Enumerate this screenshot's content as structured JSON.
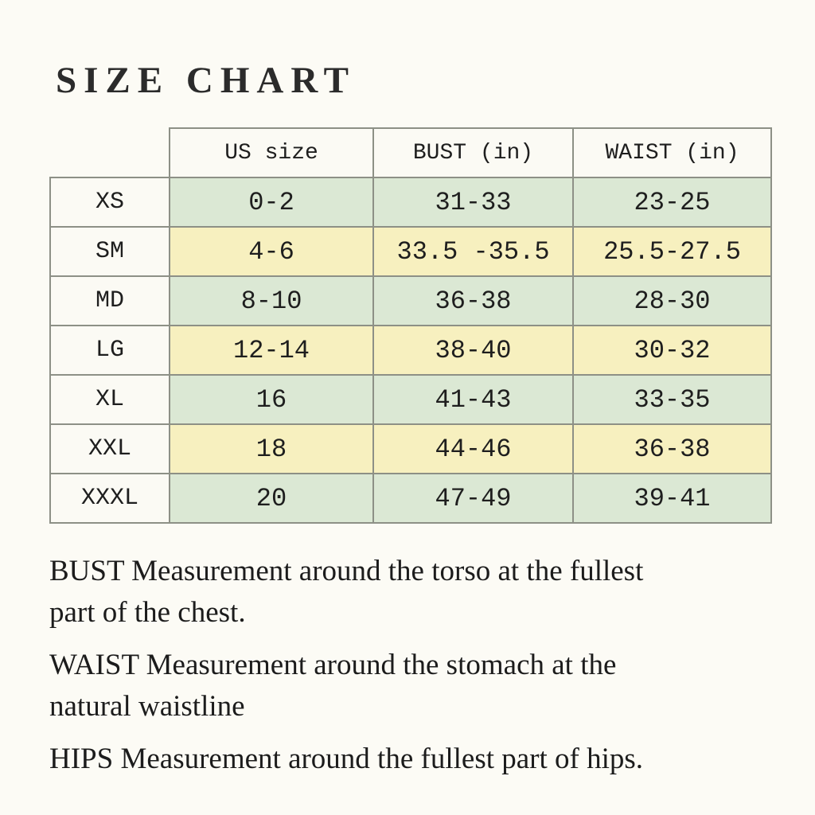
{
  "page": {
    "title": "SIZE CHART",
    "background_color": "#fcfbf5",
    "text_color": "#1e1e1e"
  },
  "table": {
    "columns": [
      "",
      "US size",
      "BUST (in)",
      "WAIST (in)"
    ],
    "rows": [
      {
        "size": "XS",
        "us_size": "0-2",
        "bust": "31-33",
        "waist": "23-25",
        "tint": "green"
      },
      {
        "size": "SM",
        "us_size": "4-6",
        "bust": "33.5 -35.5",
        "waist": "25.5-27.5",
        "tint": "yellow"
      },
      {
        "size": "MD",
        "us_size": "8-10",
        "bust": "36-38",
        "waist": "28-30",
        "tint": "green"
      },
      {
        "size": "LG",
        "us_size": "12-14",
        "bust": "38-40",
        "waist": "30-32",
        "tint": "yellow"
      },
      {
        "size": "XL",
        "us_size": "16",
        "bust": "41-43",
        "waist": "33-35",
        "tint": "green"
      },
      {
        "size": "XXL",
        "us_size": "18",
        "bust": "44-46",
        "waist": "36-38",
        "tint": "yellow"
      },
      {
        "size": "XXXL",
        "us_size": "20",
        "bust": "47-49",
        "waist": "39-41",
        "tint": "green"
      }
    ],
    "colors": {
      "row_green": "#dbe8d4",
      "row_yellow": "#f7f0bf",
      "label_cell_bg": "#fbfaf4",
      "border": "#8d9086"
    }
  },
  "notes": [
    {
      "lines": [
        "BUST Measurement around the torso at the fullest",
        "part of the chest."
      ]
    },
    {
      "lines": [
        "WAIST Measurement around the stomach at the",
        "natural waistline"
      ]
    },
    {
      "lines": [
        "HIPS Measurement around the fullest part of hips."
      ]
    }
  ]
}
